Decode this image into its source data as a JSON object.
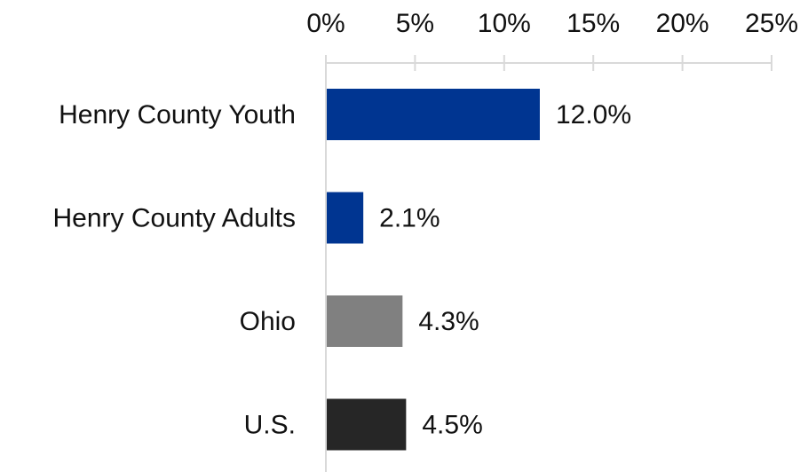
{
  "chart_data": {
    "type": "bar",
    "orientation": "horizontal",
    "categories": [
      "Henry County Youth",
      "Henry County Adults",
      "Ohio",
      "U.S."
    ],
    "values": [
      12.0,
      2.1,
      4.3,
      4.5
    ],
    "value_labels": [
      "12.0%",
      "2.1%",
      "4.3%",
      "4.5%"
    ],
    "colors": [
      "#003591",
      "#003591",
      "#808080",
      "#262626"
    ],
    "xlim": [
      0,
      25
    ],
    "xticks": [
      {
        "value": 0,
        "label": "0%"
      },
      {
        "value": 5,
        "label": "5%"
      },
      {
        "value": 10,
        "label": "10%"
      },
      {
        "value": 15,
        "label": "15%"
      },
      {
        "value": 20,
        "label": "20%"
      },
      {
        "value": 25,
        "label": "25%"
      }
    ]
  }
}
